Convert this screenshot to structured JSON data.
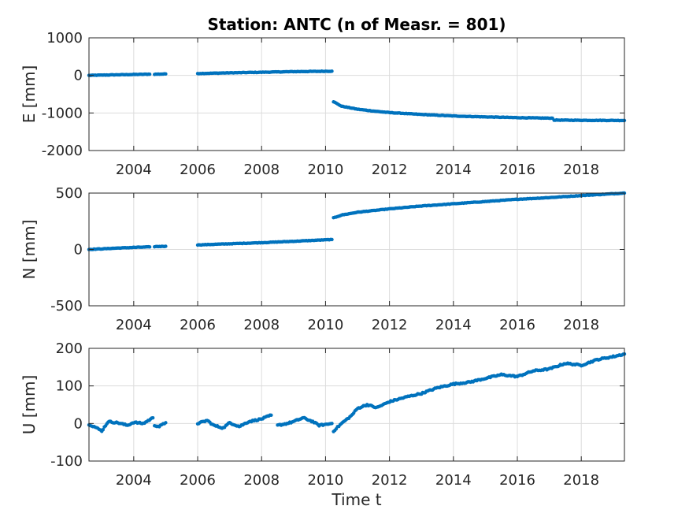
{
  "figure": {
    "title": "Station: ANTC (n of Measr. = 801)",
    "xlabel": "Time t",
    "marker_color": "#0072BD"
  },
  "chart_data": [
    {
      "type": "scatter",
      "component": "E",
      "ylabel": "E [mm]",
      "xlim": [
        2002.6,
        2019.35
      ],
      "ylim": [
        -2000,
        1000
      ],
      "xticks": [
        2004,
        2006,
        2008,
        2010,
        2012,
        2014,
        2016,
        2018
      ],
      "yticks": [
        -2000,
        -1000,
        0,
        1000
      ],
      "grid": true,
      "series": [
        {
          "x": [
            2002.6,
            2003.0,
            2003.5,
            2004.0,
            2004.5
          ],
          "y": [
            0,
            8,
            16,
            24,
            32
          ]
        },
        {
          "x": [
            2004.65,
            2005.0
          ],
          "y": [
            30,
            38
          ]
        },
        {
          "x": [
            2006.0,
            2007.0,
            2008.0,
            2009.0,
            2010.2
          ],
          "y": [
            50,
            68,
            84,
            100,
            112
          ]
        },
        {
          "x": [
            2010.25,
            2010.5,
            2011.0,
            2011.5,
            2012.0,
            2013.0,
            2014.0,
            2015.0,
            2016.0,
            2017.1
          ],
          "y": [
            -700,
            -820,
            -900,
            -950,
            -990,
            -1040,
            -1080,
            -1105,
            -1125,
            -1140
          ]
        },
        {
          "x": [
            2017.15,
            2018.0,
            2019.35
          ],
          "y": [
            -1190,
            -1195,
            -1200
          ]
        }
      ]
    },
    {
      "type": "scatter",
      "component": "N",
      "ylabel": "N [mm]",
      "xlim": [
        2002.6,
        2019.35
      ],
      "ylim": [
        -500,
        500
      ],
      "xticks": [
        2004,
        2006,
        2008,
        2010,
        2012,
        2014,
        2016,
        2018
      ],
      "yticks": [
        -500,
        0,
        500
      ],
      "grid": true,
      "series": [
        {
          "x": [
            2002.6,
            2003.0,
            2003.5,
            2004.0,
            2004.5
          ],
          "y": [
            0,
            5,
            12,
            18,
            22
          ]
        },
        {
          "x": [
            2004.65,
            2005.0
          ],
          "y": [
            25,
            28
          ]
        },
        {
          "x": [
            2006.0,
            2007.0,
            2008.0,
            2009.0,
            2010.2
          ],
          "y": [
            40,
            50,
            60,
            72,
            88
          ]
        },
        {
          "x": [
            2010.25,
            2010.5,
            2011.0,
            2012.0,
            2013.0,
            2014.0,
            2015.0,
            2016.0,
            2017.0,
            2018.0,
            2019.35
          ],
          "y": [
            280,
            305,
            330,
            360,
            385,
            405,
            425,
            445,
            460,
            478,
            500
          ]
        }
      ]
    },
    {
      "type": "scatter",
      "component": "U",
      "ylabel": "U [mm]",
      "xlim": [
        2002.6,
        2019.35
      ],
      "ylim": [
        -100,
        200
      ],
      "xticks": [
        2004,
        2006,
        2008,
        2010,
        2012,
        2014,
        2016,
        2018
      ],
      "yticks": [
        -100,
        0,
        100,
        200
      ],
      "grid": true,
      "series": [
        {
          "x": [
            2002.6,
            2002.8,
            2003.0,
            2003.2,
            2003.5,
            2003.8,
            2004.0,
            2004.3,
            2004.6
          ],
          "y": [
            -2,
            -10,
            -20,
            5,
            2,
            -5,
            3,
            0,
            15
          ]
        },
        {
          "x": [
            2004.65,
            2004.8,
            2005.0
          ],
          "y": [
            -5,
            -8,
            2
          ]
        },
        {
          "x": [
            2006.0,
            2006.3,
            2006.5,
            2006.8,
            2007.0,
            2007.3,
            2007.6,
            2008.0,
            2008.3
          ],
          "y": [
            0,
            8,
            -5,
            -12,
            2,
            -8,
            5,
            12,
            22
          ]
        },
        {
          "x": [
            2008.5,
            2008.8,
            2009.0,
            2009.3,
            2009.6,
            2009.8,
            2010.2
          ],
          "y": [
            -5,
            0,
            5,
            15,
            5,
            -5,
            0
          ]
        },
        {
          "x": [
            2010.25,
            2010.5,
            2010.8,
            2011.0,
            2011.3,
            2011.6,
            2012.0,
            2012.5,
            2013.0,
            2013.5,
            2014.0,
            2014.5,
            2015.0,
            2015.5,
            2016.0,
            2016.5,
            2017.0,
            2017.5,
            2018.0,
            2018.5,
            2019.0,
            2019.35
          ],
          "y": [
            -20,
            0,
            20,
            40,
            50,
            42,
            58,
            70,
            80,
            95,
            105,
            110,
            120,
            130,
            125,
            140,
            145,
            160,
            155,
            170,
            178,
            185
          ]
        }
      ]
    }
  ]
}
